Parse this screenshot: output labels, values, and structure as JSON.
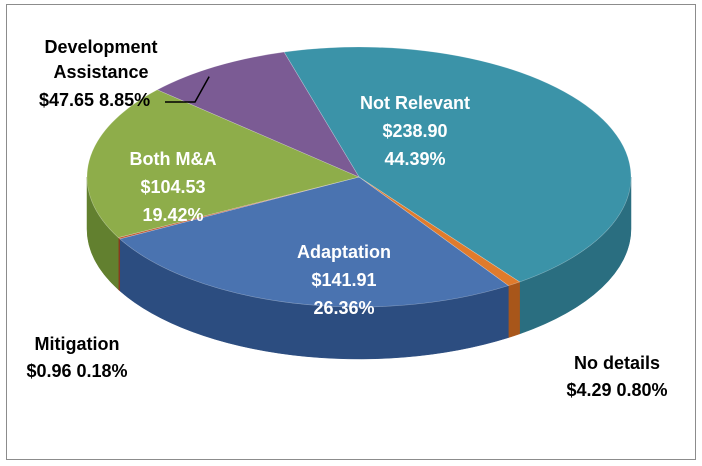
{
  "chart_data": {
    "type": "pie",
    "style": "3d",
    "slices": [
      {
        "label": "Not Relevant",
        "value_text": "$238.90",
        "percent_text": "44.39%",
        "value": 238.9,
        "percent": 44.39,
        "color": "#3b93a8",
        "side": "#2a6e80",
        "label_position": "inside"
      },
      {
        "label": "No details",
        "value_text": "$4.29",
        "percent_text": "0.80%",
        "value": 4.29,
        "percent": 0.8,
        "color": "#e07b2c",
        "side": "#a8561a",
        "label_position": "outside"
      },
      {
        "label": "Adaptation",
        "value_text": "$141.91",
        "percent_text": "26.36%",
        "value": 141.91,
        "percent": 26.36,
        "color": "#4a73b0",
        "side": "#2c4d80",
        "label_position": "inside"
      },
      {
        "label": "Mitigation",
        "value_text": "$0.96",
        "percent_text": "0.18%",
        "value": 0.96,
        "percent": 0.18,
        "color": "#c0552e",
        "side": "#8a3a1e",
        "label_position": "outside"
      },
      {
        "label": "Both M&A",
        "value_text": "$104.53",
        "percent_text": "19.42%",
        "value": 104.53,
        "percent": 19.42,
        "color": "#8ead4a",
        "side": "#62802f",
        "label_position": "inside"
      },
      {
        "label": "Development Assistance",
        "value_text": "$47.65",
        "percent_text": "8.85%",
        "value": 47.65,
        "percent": 8.85,
        "color": "#7b5b94",
        "side": "#55406a",
        "label_position": "outside"
      }
    ]
  }
}
